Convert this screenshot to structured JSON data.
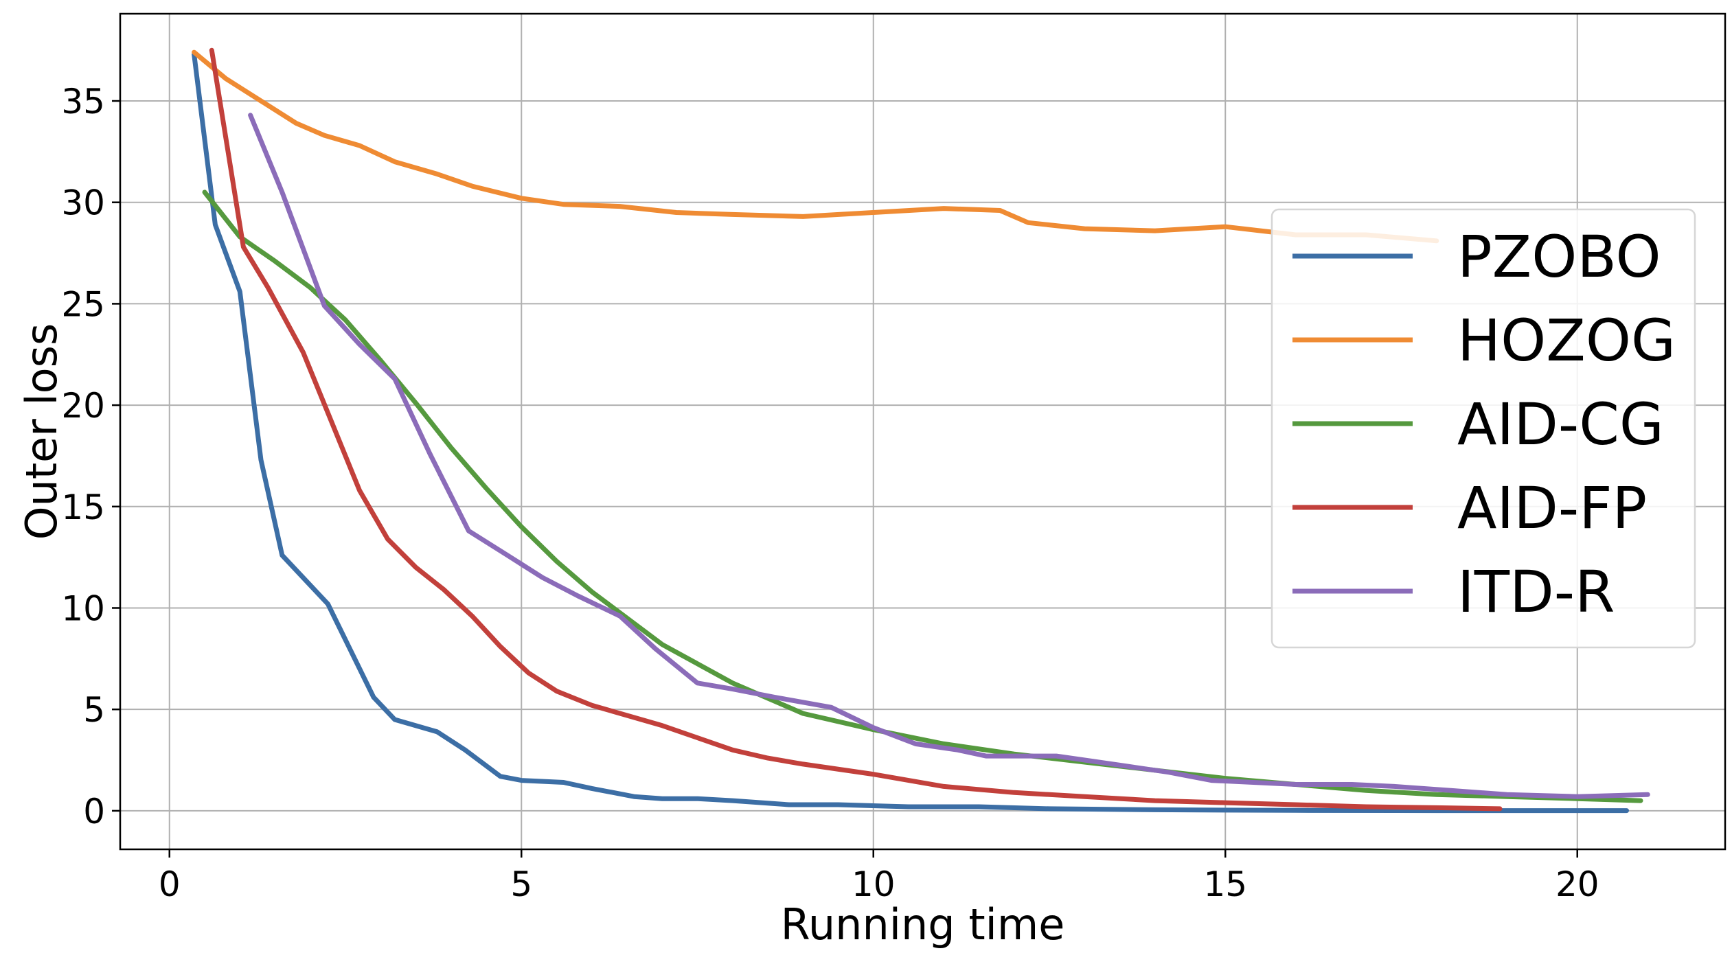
{
  "chart_data": {
    "type": "line",
    "xlabel": "Running time",
    "ylabel": "Outer loss",
    "xlim": [
      -0.7,
      22.1
    ],
    "ylim": [
      -1.9,
      39.3
    ],
    "xticks": [
      0,
      5,
      10,
      15,
      20
    ],
    "yticks": [
      0,
      5,
      10,
      15,
      20,
      25,
      30,
      35
    ],
    "grid": true,
    "legend_position": "right",
    "series": [
      {
        "name": "PZOBO",
        "color": "#3c6ea5",
        "x": [
          0.35,
          0.65,
          1.0,
          1.3,
          1.6,
          2.25,
          2.9,
          3.2,
          3.8,
          4.2,
          4.7,
          5.0,
          5.6,
          6.0,
          6.6,
          7.0,
          7.5,
          8.0,
          8.8,
          9.5,
          10.5,
          11.5,
          12.5,
          14.0,
          16.0,
          18.0,
          20.7
        ],
        "y": [
          37.3,
          28.9,
          25.6,
          17.3,
          12.6,
          10.2,
          5.6,
          4.5,
          3.9,
          3.0,
          1.7,
          1.5,
          1.4,
          1.1,
          0.7,
          0.6,
          0.6,
          0.5,
          0.3,
          0.3,
          0.2,
          0.2,
          0.1,
          0.05,
          0.02,
          0.01,
          0.01
        ]
      },
      {
        "name": "HOZOG",
        "color": "#ef8b33",
        "x": [
          0.35,
          0.8,
          1.3,
          1.8,
          2.2,
          2.7,
          3.2,
          3.8,
          4.3,
          5.0,
          5.6,
          6.4,
          7.2,
          8.0,
          9.0,
          10.0,
          11.0,
          11.8,
          12.2,
          13.0,
          14.0,
          15.0,
          16.0,
          17.0,
          18.0
        ],
        "y": [
          37.4,
          36.1,
          35.0,
          33.9,
          33.3,
          32.8,
          32.0,
          31.4,
          30.8,
          30.2,
          29.9,
          29.8,
          29.5,
          29.4,
          29.3,
          29.5,
          29.7,
          29.6,
          29.0,
          28.7,
          28.6,
          28.8,
          28.4,
          28.4,
          28.1
        ]
      },
      {
        "name": "AID-CG",
        "color": "#55993e",
        "x": [
          0.5,
          1.0,
          1.5,
          2.0,
          2.5,
          3.0,
          3.5,
          4.0,
          4.5,
          5.0,
          5.5,
          6.0,
          7.0,
          8.0,
          9.0,
          10.0,
          11.0,
          12.0,
          13.0,
          14.0,
          15.0,
          16.0,
          17.0,
          18.0,
          19.0,
          20.0,
          20.9
        ],
        "y": [
          30.5,
          28.3,
          27.1,
          25.8,
          24.2,
          22.2,
          20.1,
          17.9,
          15.9,
          14.0,
          12.3,
          10.8,
          8.2,
          6.3,
          4.8,
          4.0,
          3.3,
          2.8,
          2.4,
          2.0,
          1.6,
          1.3,
          1.0,
          0.8,
          0.7,
          0.6,
          0.5
        ]
      },
      {
        "name": "AID-FP",
        "color": "#c2403b",
        "x": [
          0.6,
          1.05,
          1.4,
          1.9,
          2.3,
          2.7,
          3.1,
          3.5,
          3.9,
          4.3,
          4.7,
          5.1,
          5.5,
          6.0,
          6.5,
          7.0,
          7.5,
          8.0,
          8.5,
          9.0,
          10.0,
          11.0,
          12.0,
          13.0,
          14.0,
          15.0,
          16.0,
          17.0,
          18.0,
          18.9
        ],
        "y": [
          37.5,
          27.8,
          25.8,
          22.6,
          19.2,
          15.8,
          13.4,
          12.0,
          10.9,
          9.6,
          8.1,
          6.8,
          5.9,
          5.2,
          4.7,
          4.2,
          3.6,
          3.0,
          2.6,
          2.3,
          1.8,
          1.2,
          0.9,
          0.7,
          0.5,
          0.4,
          0.3,
          0.2,
          0.15,
          0.1
        ]
      },
      {
        "name": "ITD-R",
        "color": "#8b6cb9",
        "x": [
          1.15,
          1.6,
          2.2,
          2.7,
          3.2,
          3.7,
          4.25,
          4.8,
          5.3,
          5.8,
          6.4,
          6.9,
          7.5,
          8.0,
          8.6,
          9.4,
          10.0,
          10.6,
          11.2,
          11.6,
          12.0,
          12.6,
          13.0,
          13.6,
          14.2,
          14.8,
          15.4,
          16.0,
          16.8,
          17.4,
          18.2,
          19.0,
          20.0,
          21.0
        ],
        "y": [
          34.3,
          30.5,
          24.9,
          23.0,
          21.3,
          17.6,
          13.8,
          12.6,
          11.5,
          10.6,
          9.6,
          8.0,
          6.3,
          6.0,
          5.6,
          5.1,
          4.1,
          3.3,
          3.0,
          2.7,
          2.7,
          2.7,
          2.5,
          2.2,
          1.9,
          1.5,
          1.4,
          1.3,
          1.3,
          1.2,
          1.0,
          0.8,
          0.7,
          0.8
        ]
      }
    ]
  }
}
